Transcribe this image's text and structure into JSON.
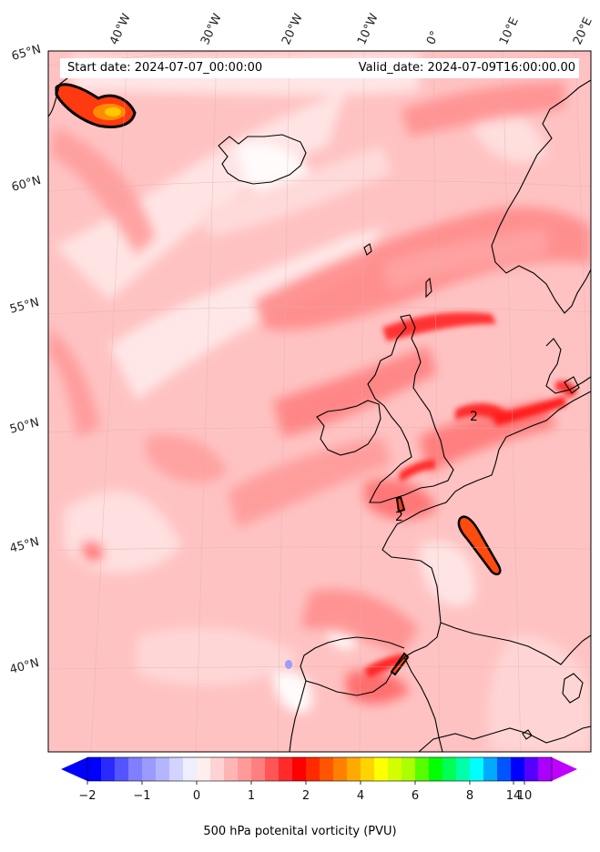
{
  "header": {
    "start_label": "Start date: 2024-07-07_00:00:00",
    "valid_label": "Valid_date: 2024-07-09T16:00:00.00"
  },
  "axes": {
    "longitude_labels": [
      "40°W",
      "30°W",
      "20°W",
      "10°W",
      "0°",
      "10°E",
      "20°E"
    ],
    "latitude_labels": [
      "65°N",
      "60°N",
      "55°N",
      "50°N",
      "45°N",
      "40°N"
    ]
  },
  "contour_labels": [
    "2",
    "2"
  ],
  "colorbar": {
    "label": "500 hPa potenital vorticity (PVU)",
    "tick_labels": [
      "−2",
      "−1",
      "0",
      "1",
      "2",
      "4",
      "6",
      "8",
      "10",
      "14"
    ],
    "colors": [
      "#0000ff",
      "#2a2aff",
      "#5555ff",
      "#7f7fff",
      "#9a9aff",
      "#b5b5ff",
      "#d3d3ff",
      "#eeeeff",
      "#ffeeee",
      "#ffd3d3",
      "#ffb5b5",
      "#ff9a9a",
      "#ff7f7f",
      "#ff5555",
      "#ff2a2a",
      "#ff0000",
      "#ff2a00",
      "#ff5500",
      "#ff8000",
      "#ffaa00",
      "#ffd400",
      "#ffff00",
      "#d4ff00",
      "#aaff00",
      "#55ff00",
      "#00ff00",
      "#00ff55",
      "#00ffaa",
      "#00ffff",
      "#00aaff",
      "#0055ff",
      "#0000ff",
      "#5500ff",
      "#aa00ff"
    ],
    "min_arrow_color": "#0000ff",
    "max_arrow_color": "#c000ff"
  },
  "palette": {
    "background_pv": "#ffb3b3",
    "coast": "#000000"
  }
}
